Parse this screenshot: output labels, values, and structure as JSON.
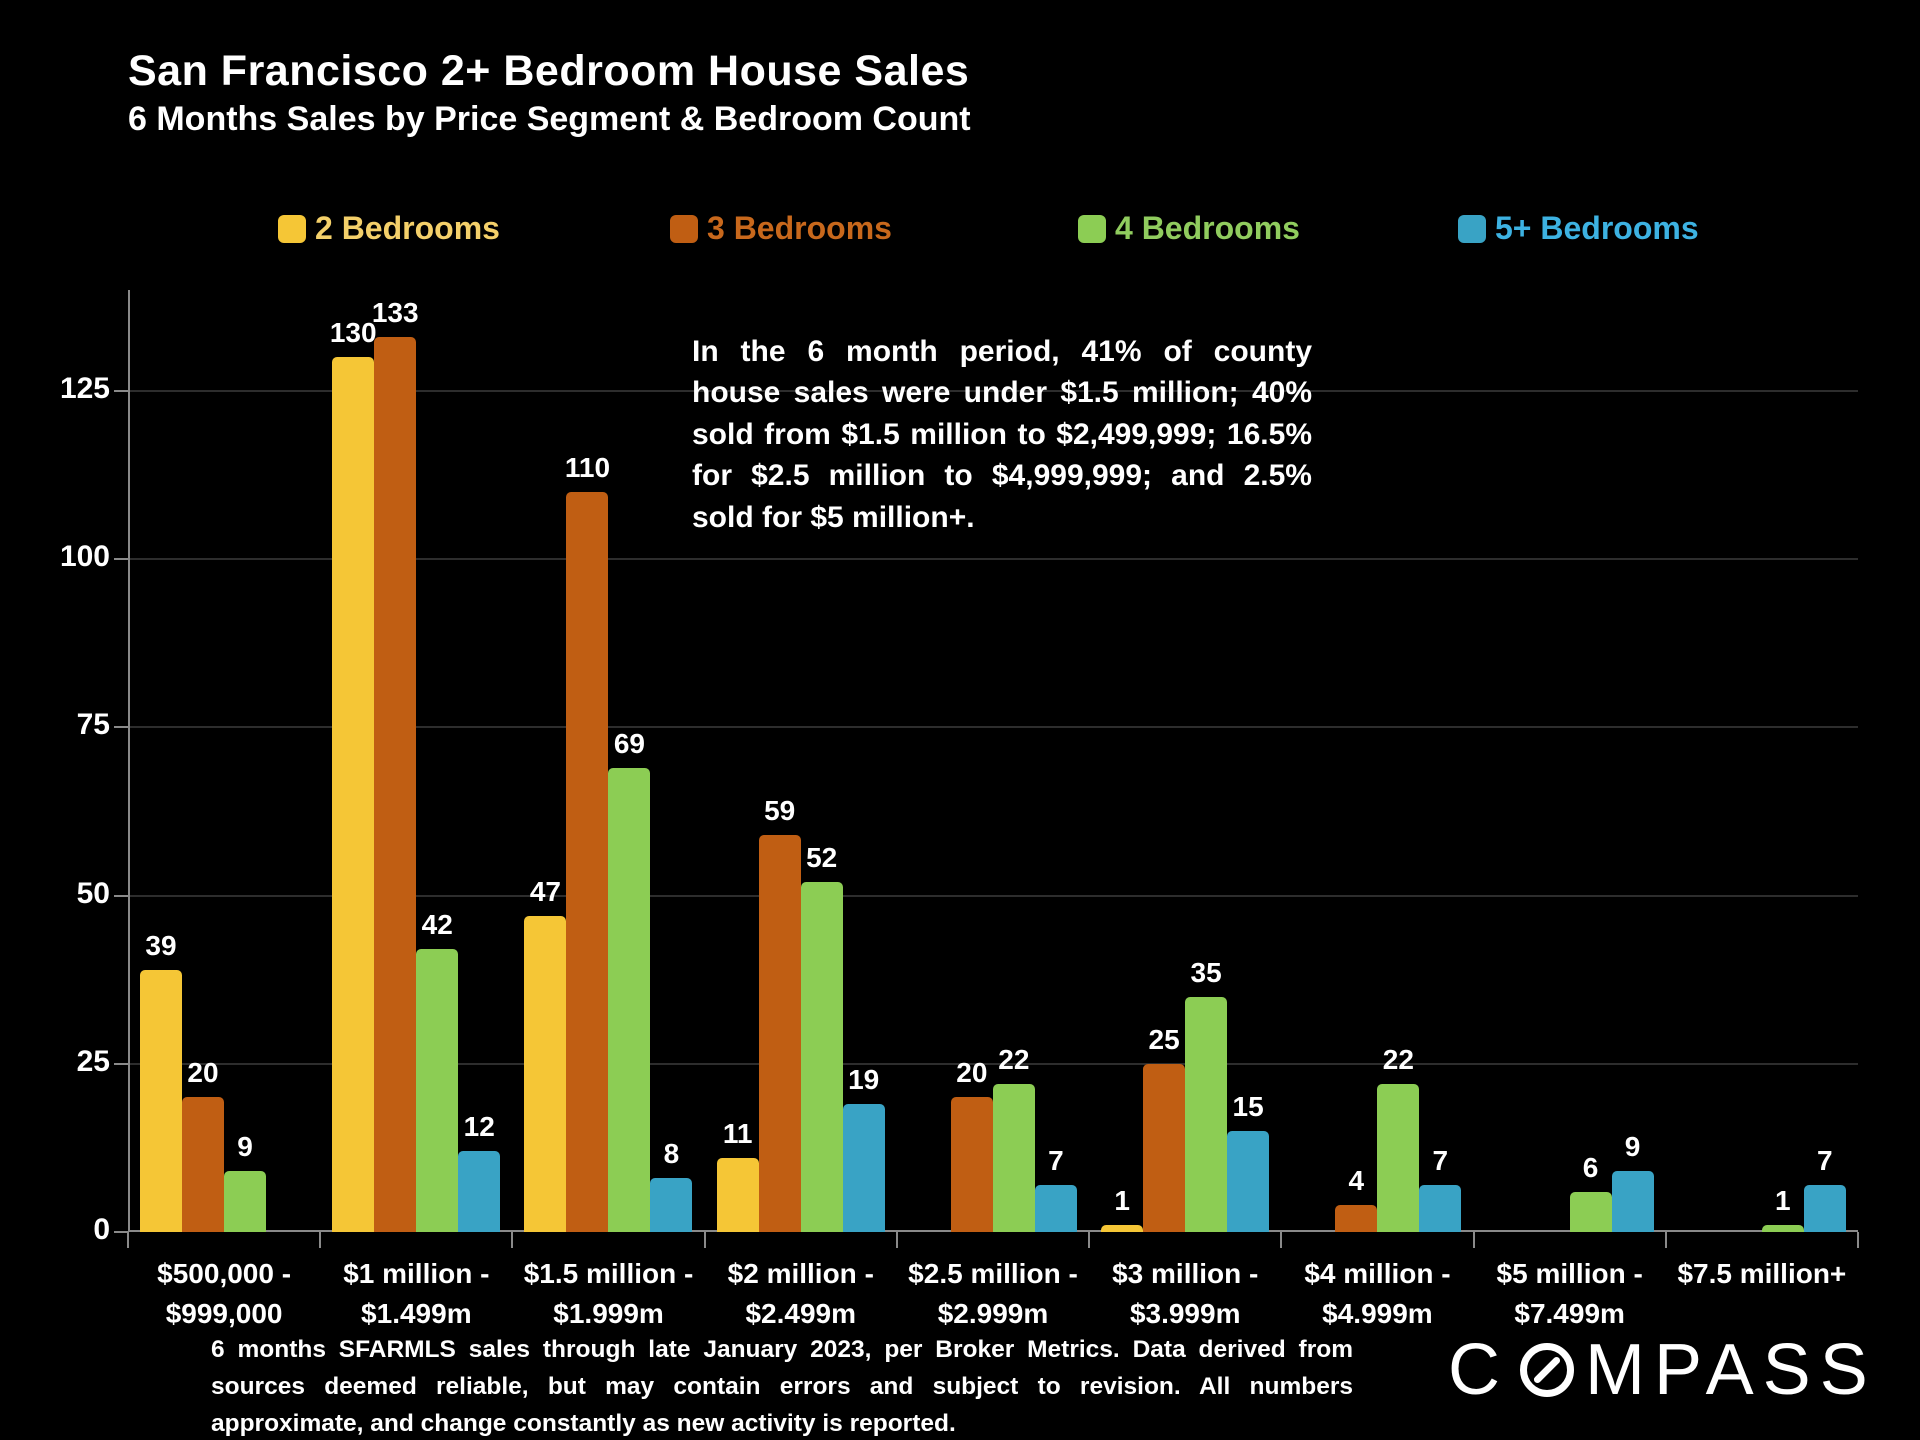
{
  "title": "San Francisco 2+ Bedroom House Sales",
  "subtitle": "6 Months Sales by Price Segment & Bedroom Count",
  "annotation": "In the 6 month period, 41% of county house sales were under $1.5 million; 40% sold from $1.5 million to $2,499,999; 16.5% for $2.5 million to $4,999,999; and 2.5% sold for $5 million+.",
  "footer": "6 months SFARMLS sales through late January 2023, per Broker Metrics. Data derived from sources deemed reliable, but may contain errors and subject to revision. All numbers approximate, and change constantly as new activity is reported.",
  "logo": {
    "prefix": "C",
    "suffix": "MPASS"
  },
  "colors": {
    "background": "#000000",
    "grid": "#2d2d2d",
    "axis": "#8a8a8a",
    "value_label": "#ffffff"
  },
  "chart_data": {
    "type": "bar",
    "title": "San Francisco 2+ Bedroom House Sales",
    "subtitle": "6 Months Sales by Price Segment & Bedroom Count",
    "categories": [
      "$500,000 - $999,000",
      "$1 million - $1.499m",
      "$1.5 million - $1.999m",
      "$2 million - $2.499m",
      "$2.5 million - $2.999m",
      "$3 million - $3.999m",
      "$4 million - $4.999m",
      "$5 million - $7.499m",
      "$7.5 million+"
    ],
    "category_lines": [
      [
        "$500,000 -",
        "$999,000"
      ],
      [
        "$1 million -",
        "$1.499m"
      ],
      [
        "$1.5 million -",
        "$1.999m"
      ],
      [
        "$2 million -",
        "$2.499m"
      ],
      [
        "$2.5 million -",
        "$2.999m"
      ],
      [
        "$3 million -",
        "$3.999m"
      ],
      [
        "$4 million -",
        "$4.999m"
      ],
      [
        "$5 million -",
        "$7.499m"
      ],
      [
        "$7.5 million+"
      ]
    ],
    "series": [
      {
        "name": "2 Bedrooms",
        "color": "#F5C636",
        "label_color": "#F4D06A",
        "values": [
          39,
          130,
          47,
          11,
          null,
          1,
          null,
          null,
          null
        ]
      },
      {
        "name": "3 Bedrooms",
        "color": "#C05E13",
        "label_color": "#C8681C",
        "values": [
          20,
          133,
          110,
          59,
          20,
          25,
          4,
          null,
          null
        ]
      },
      {
        "name": "4 Bedrooms",
        "color": "#8CCD54",
        "label_color": "#90CC5E",
        "values": [
          9,
          42,
          69,
          52,
          22,
          35,
          22,
          6,
          1
        ]
      },
      {
        "name": "5+ Bedrooms",
        "color": "#39A3C5",
        "label_color": "#3DB2E2",
        "values": [
          null,
          12,
          8,
          19,
          7,
          15,
          7,
          9,
          7
        ]
      }
    ],
    "xlabel": "",
    "ylabel": "",
    "ylim": [
      0,
      140
    ],
    "yticks": [
      0,
      25,
      50,
      75,
      100,
      125
    ],
    "grid": "horizontal",
    "legend_position": "top"
  }
}
